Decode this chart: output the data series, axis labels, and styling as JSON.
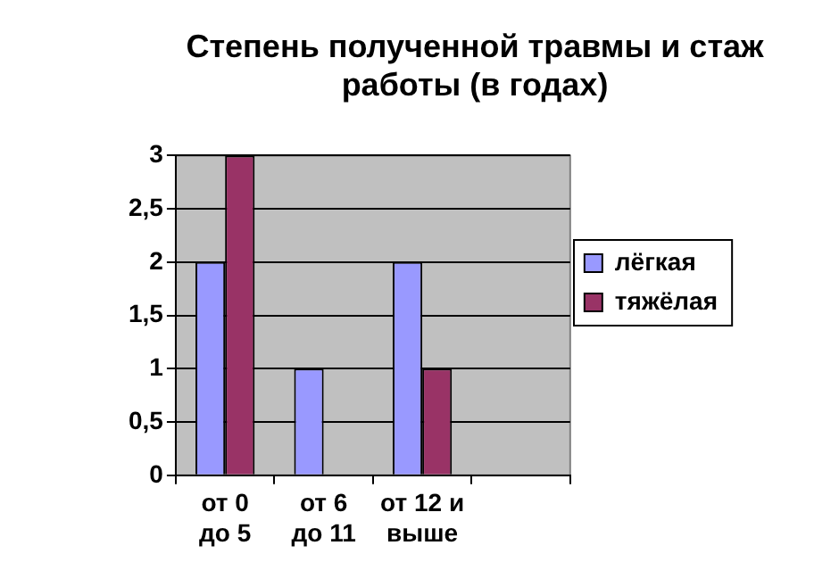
{
  "chart_data": {
    "type": "bar",
    "title": "Степень полученной травмы и стаж работы (в годах)",
    "categories": [
      "от 0 до 5",
      "от 6 до 11",
      "от 12 и выше",
      null
    ],
    "series": [
      {
        "name": "лёгкая",
        "color": "#9999ff",
        "values": [
          2,
          1,
          2,
          null
        ]
      },
      {
        "name": "тяжёлая",
        "color": "#993366",
        "values": [
          3,
          0,
          1,
          null
        ]
      }
    ],
    "ylim": [
      0,
      3
    ],
    "yticks": [
      0,
      {
        "value": 0.5,
        "label": "0,5"
      },
      1,
      {
        "value": 1.5,
        "label": "1,5"
      },
      2,
      {
        "value": 2.5,
        "label": "2,5"
      },
      3
    ],
    "grid": "y",
    "legend": "right"
  }
}
